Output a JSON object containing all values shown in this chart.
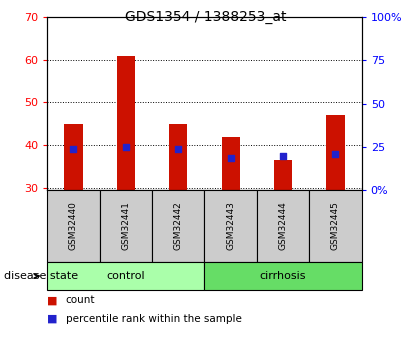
{
  "title": "GDS1354 / 1388253_at",
  "samples": [
    "GSM32440",
    "GSM32441",
    "GSM32442",
    "GSM32443",
    "GSM32444",
    "GSM32445"
  ],
  "count_values": [
    45,
    61,
    45,
    42,
    36.5,
    47
  ],
  "percentile_values": [
    39,
    39.5,
    39,
    37,
    37.5,
    38
  ],
  "bar_bottom": 29.5,
  "ylim_min": 29.5,
  "ylim_max": 70,
  "yticks": [
    30,
    40,
    50,
    60,
    70
  ],
  "y2lim_min": 0,
  "y2lim_max": 100,
  "y2ticks": [
    0,
    25,
    50,
    75,
    100
  ],
  "y2ticklabels": [
    "0",
    "25",
    "50",
    "75",
    "100%"
  ],
  "bar_color": "#cc1100",
  "percentile_color": "#2222cc",
  "control_bg": "#aaffaa",
  "cirrhosis_bg": "#66dd66",
  "sample_bg": "#cccccc",
  "legend_count": "count",
  "legend_percentile": "percentile rank within the sample",
  "control_label": "control",
  "cirrhosis_label": "cirrhosis",
  "disease_state_label": "disease state"
}
